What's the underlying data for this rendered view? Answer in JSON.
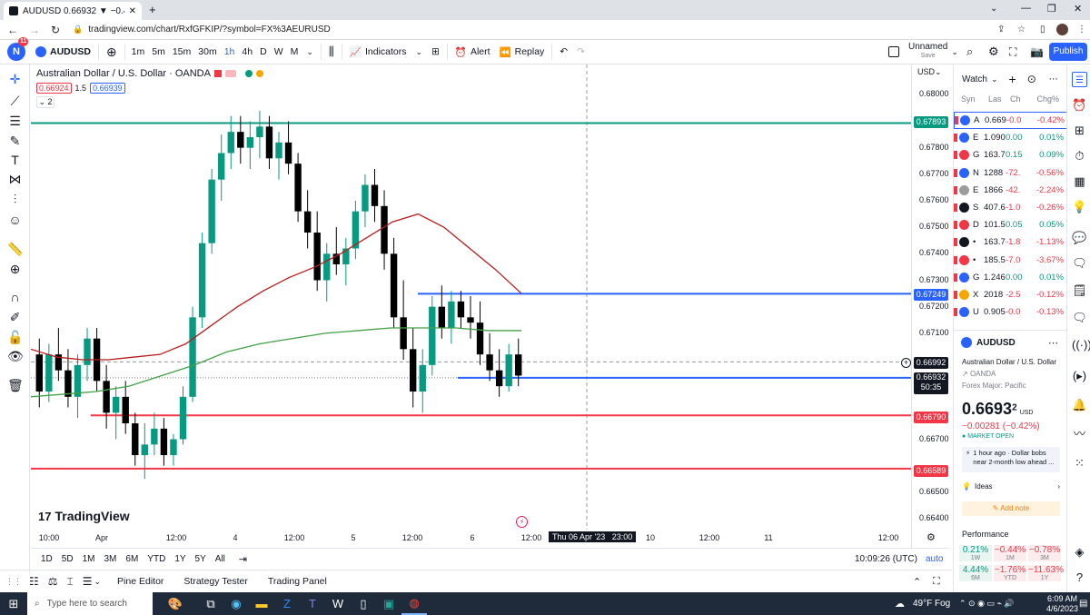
{
  "browser": {
    "tab_title": "AUDUSD 0.66932 ▼ −0.42% Unn",
    "url": "tradingview.com/chart/RxfGFKIP/?symbol=FX%3AEURUSD"
  },
  "toolbar": {
    "symbol": "AUDUSD",
    "badge": "11",
    "avatar_letter": "N",
    "intervals": [
      "1m",
      "5m",
      "15m",
      "30m",
      "1h",
      "4h",
      "D",
      "W",
      "M"
    ],
    "active_interval": "1h",
    "indicators_label": "Indicators",
    "alert_label": "Alert",
    "replay_label": "Replay",
    "layout_name": "Unnamed",
    "layout_sub": "Save",
    "publish_label": "Publish"
  },
  "legend": {
    "title": "Australian Dollar / U.S. Dollar · OANDA",
    "bid": "0.66924",
    "spread": "1.5",
    "ask": "0.66939",
    "collapse": "2"
  },
  "price_axis": {
    "currency": "USD",
    "ticks": [
      "0.68000",
      "0.67800",
      "0.67700",
      "0.67600",
      "0.67500",
      "0.67400",
      "0.67300",
      "0.67200",
      "0.67100",
      "0.66700",
      "0.66500",
      "0.66400"
    ],
    "labels": {
      "top_green": "0.67893",
      "blue_upper": "0.67249",
      "crosshair": "0.66992",
      "current": "0.66932",
      "countdown": "50:35",
      "red_upper": "0.66790",
      "red_lower": "0.66589"
    }
  },
  "time_axis": {
    "ticks": [
      "10:00",
      "Apr",
      "12:00",
      "4",
      "12:00",
      "5",
      "12:00",
      "6",
      "12:00",
      "10",
      "12:00",
      "11",
      "12:00"
    ],
    "crosshair": "Thu 06 Apr '23   23:00"
  },
  "watermark": "TradingView",
  "bottom": {
    "ranges": [
      "1D",
      "5D",
      "1M",
      "3M",
      "6M",
      "YTD",
      "1Y",
      "5Y",
      "All"
    ],
    "clock": "10:09:26 (UTC)",
    "auto": "auto"
  },
  "panels": [
    "Pine Editor",
    "Strategy Tester",
    "Trading Panel"
  ],
  "watchlist": {
    "title": "Watch",
    "headers": [
      "Syn",
      "Las",
      "Ch",
      "Chg%"
    ],
    "rows": [
      {
        "sym": "A",
        "last": "0.669",
        "ch": "-0.0",
        "chp": "-0.42%",
        "dir": "neg",
        "color": "#2962ff"
      },
      {
        "sym": "E",
        "last": "1.090",
        "ch": "0.00",
        "chp": "0.01%",
        "dir": "pos",
        "color": "#2962ff"
      },
      {
        "sym": "G",
        "last": "163.7",
        "ch": "0.15",
        "chp": "0.09%",
        "dir": "pos",
        "color": "#f23645"
      },
      {
        "sym": "N",
        "last": "1288",
        "ch": "-72.",
        "chp": "-0.56%",
        "dir": "neg",
        "color": "#2962ff"
      },
      {
        "sym": "E",
        "last": "1866",
        "ch": "-42.",
        "chp": "-2.24%",
        "dir": "neg",
        "color": "#9c9c9c"
      },
      {
        "sym": "S",
        "last": "407.6",
        "ch": "-1.0",
        "chp": "-0.26%",
        "dir": "neg",
        "color": "#131722"
      },
      {
        "sym": "D",
        "last": "101.5",
        "ch": "0.05",
        "chp": "0.05%",
        "dir": "pos",
        "color": "#f23645"
      },
      {
        "sym": "•",
        "last": "163.7",
        "ch": "-1.8",
        "chp": "-1.13%",
        "dir": "neg",
        "color": "#131722"
      },
      {
        "sym": "•",
        "last": "185.5",
        "ch": "-7.0",
        "chp": "-3.67%",
        "dir": "neg",
        "color": "#f23645"
      },
      {
        "sym": "G",
        "last": "1.246",
        "ch": "0.00",
        "chp": "0.01%",
        "dir": "pos",
        "color": "#2962ff"
      },
      {
        "sym": "X",
        "last": "2018",
        "ch": "-2.5",
        "chp": "-0.12%",
        "dir": "neg",
        "color": "#f7a600"
      },
      {
        "sym": "U",
        "last": "0.905",
        "ch": "-0.0",
        "chp": "-0.13%",
        "dir": "neg",
        "color": "#2962ff"
      }
    ]
  },
  "details": {
    "symbol": "AUDUSD",
    "name": "Australian Dollar / U.S. Dollar",
    "exchange": "OANDA",
    "category": "Forex Major: Pacific",
    "price_main": "0.6693",
    "price_sup": "2",
    "currency": "USD",
    "change": "−0.00281 (−0.42%)",
    "status": "MARKET OPEN",
    "news": "1 hour ago · Dollar bobs near 2-month low ahead ...",
    "ideas": "Ideas",
    "add_note": "Add note",
    "performance_title": "Performance",
    "performance": [
      {
        "v": "0.21%",
        "l": "1W",
        "dir": "pos"
      },
      {
        "v": "−0.44%",
        "l": "1M",
        "dir": "neg"
      },
      {
        "v": "−0.78%",
        "l": "3M",
        "dir": "neg"
      },
      {
        "v": "4.44%",
        "l": "6M",
        "dir": "pos"
      },
      {
        "v": "−1.76%",
        "l": "YTD",
        "dir": "neg"
      },
      {
        "v": "−11.63%",
        "l": "1Y",
        "dir": "neg"
      }
    ]
  },
  "taskbar": {
    "search": "Type here to search",
    "weather": "49°F  Fog",
    "time": "6:09 AM",
    "date": "4/6/2023"
  },
  "colors": {
    "up": "#089981",
    "down": "#000000",
    "green_line": "#089981",
    "blue_line": "#2962ff",
    "red_line": "#f23645",
    "ma_red": "#b71c1c",
    "ma_green": "#43a047"
  },
  "chart_data": {
    "type": "candlestick",
    "symbol": "AUDUSD",
    "interval": "1h",
    "ylim": [
      0.664,
      0.6808
    ],
    "horizontal_lines": [
      {
        "value": 0.67893,
        "color": "green"
      },
      {
        "value": 0.67249,
        "color": "blue"
      },
      {
        "value": 0.66932,
        "color": "blue"
      },
      {
        "value": 0.6679,
        "color": "red"
      },
      {
        "value": 0.66589,
        "color": "red"
      }
    ],
    "moving_averages": [
      {
        "color": "red",
        "values": [
          0.6704,
          0.6701,
          0.67,
          0.67,
          0.6701,
          0.6702,
          0.6706,
          0.6713,
          0.672,
          0.6726,
          0.6731,
          0.6735,
          0.674,
          0.6746,
          0.6752,
          0.6755,
          0.675,
          0.6742,
          0.6734,
          0.6725
        ]
      },
      {
        "color": "green",
        "values": [
          0.6686,
          0.6687,
          0.6688,
          0.669,
          0.6694,
          0.6698,
          0.6703,
          0.6706,
          0.6708,
          0.671,
          0.6711,
          0.6712,
          0.6712,
          0.6712,
          0.6711,
          0.6711
        ]
      }
    ],
    "ohlc": [
      [
        0.6702,
        0.6708,
        0.6682,
        0.6688
      ],
      [
        0.6688,
        0.6706,
        0.6684,
        0.6702
      ],
      [
        0.6702,
        0.6712,
        0.6692,
        0.6696
      ],
      [
        0.6696,
        0.6704,
        0.6682,
        0.6686
      ],
      [
        0.6686,
        0.6702,
        0.6678,
        0.6698
      ],
      [
        0.6698,
        0.6712,
        0.6692,
        0.6708
      ],
      [
        0.6708,
        0.6712,
        0.6688,
        0.6692
      ],
      [
        0.6692,
        0.6698,
        0.6674,
        0.668
      ],
      [
        0.668,
        0.669,
        0.667,
        0.6686
      ],
      [
        0.6686,
        0.6692,
        0.6672,
        0.6676
      ],
      [
        0.6676,
        0.668,
        0.666,
        0.6664
      ],
      [
        0.6664,
        0.6676,
        0.6655,
        0.6668
      ],
      [
        0.6668,
        0.668,
        0.6664,
        0.6674
      ],
      [
        0.6674,
        0.6678,
        0.666,
        0.6664
      ],
      [
        0.6664,
        0.6672,
        0.666,
        0.667
      ],
      [
        0.667,
        0.669,
        0.6668,
        0.6686
      ],
      [
        0.6686,
        0.672,
        0.6684,
        0.6716
      ],
      [
        0.6716,
        0.6748,
        0.6712,
        0.6744
      ],
      [
        0.6744,
        0.6772,
        0.674,
        0.6768
      ],
      [
        0.6768,
        0.6785,
        0.676,
        0.6778
      ],
      [
        0.6778,
        0.6792,
        0.6772,
        0.6786
      ],
      [
        0.6786,
        0.6792,
        0.6774,
        0.678
      ],
      [
        0.678,
        0.679,
        0.6772,
        0.6784
      ],
      [
        0.6784,
        0.6794,
        0.6776,
        0.6788
      ],
      [
        0.6788,
        0.6792,
        0.6772,
        0.6776
      ],
      [
        0.6776,
        0.6786,
        0.6768,
        0.6782
      ],
      [
        0.6782,
        0.679,
        0.677,
        0.6774
      ],
      [
        0.6774,
        0.6778,
        0.6752,
        0.6756
      ],
      [
        0.6756,
        0.6764,
        0.6742,
        0.6748
      ],
      [
        0.6748,
        0.6756,
        0.6726,
        0.673
      ],
      [
        0.673,
        0.6744,
        0.6722,
        0.674
      ],
      [
        0.674,
        0.675,
        0.6732,
        0.6736
      ],
      [
        0.6736,
        0.6746,
        0.6728,
        0.6742
      ],
      [
        0.6742,
        0.676,
        0.6738,
        0.6756
      ],
      [
        0.6756,
        0.677,
        0.675,
        0.6766
      ],
      [
        0.6766,
        0.6772,
        0.6752,
        0.6758
      ],
      [
        0.6758,
        0.6764,
        0.6734,
        0.674
      ],
      [
        0.674,
        0.6746,
        0.6712,
        0.6716
      ],
      [
        0.6716,
        0.673,
        0.67,
        0.6704
      ],
      [
        0.6704,
        0.6712,
        0.6682,
        0.6688
      ],
      [
        0.6688,
        0.6704,
        0.668,
        0.6698
      ],
      [
        0.6698,
        0.6724,
        0.6694,
        0.672
      ],
      [
        0.672,
        0.6728,
        0.6708,
        0.6712
      ],
      [
        0.6712,
        0.6726,
        0.6706,
        0.6722
      ],
      [
        0.6722,
        0.6726,
        0.6712,
        0.6716
      ],
      [
        0.6716,
        0.6724,
        0.6708,
        0.6714
      ],
      [
        0.6714,
        0.6722,
        0.6698,
        0.6702
      ],
      [
        0.6702,
        0.671,
        0.6692,
        0.6696
      ],
      [
        0.6696,
        0.6704,
        0.6686,
        0.669
      ],
      [
        0.669,
        0.6706,
        0.6688,
        0.6702
      ],
      [
        0.6702,
        0.6708,
        0.669,
        0.6694
      ]
    ]
  }
}
